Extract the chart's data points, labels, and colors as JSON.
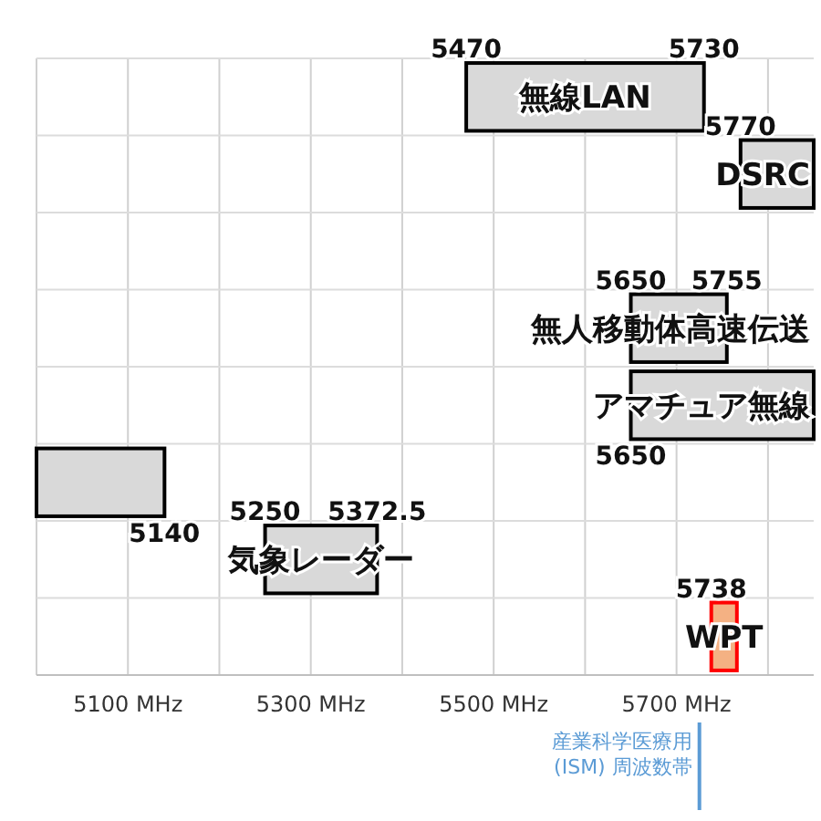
{
  "chart_data": {
    "type": "bar",
    "orientation": "horizontal",
    "grid": true,
    "categories": [
      "無線LAN",
      "DSRC",
      null,
      "無人移動体高速伝送",
      "アマチュア無線",
      null,
      "気象レーダー",
      "WPT"
    ],
    "base": [
      5470,
      5770,
      null,
      5650,
      5650,
      5000,
      5250,
      5738
    ],
    "values": [
      260,
      80,
      null,
      105,
      200,
      140,
      122.5,
      28
    ],
    "value_labels": [
      null,
      null,
      null,
      null,
      null,
      "5140",
      null,
      null
    ],
    "colors": [
      "#d9d9d9",
      "#d9d9d9",
      null,
      "#d9d9d9",
      "#d9d9d9",
      "#d9d9d9",
      "#d9d9d9",
      "#f4b183"
    ],
    "xlim": [
      5000,
      5850
    ],
    "xticks": [
      {
        "value": 5000,
        "label": null
      },
      {
        "value": 5100,
        "label": "5100 MHz"
      },
      {
        "value": 5200,
        "label": null
      },
      {
        "value": 5300,
        "label": "5300 MHz"
      },
      {
        "value": 5400,
        "label": null
      },
      {
        "value": 5500,
        "label": "5500 MHz"
      },
      {
        "value": 5600,
        "label": null
      },
      {
        "value": 5700,
        "label": "5700 MHz"
      },
      {
        "value": 5800,
        "label": null
      }
    ],
    "annotations": [
      {
        "text": "5470",
        "x": 5470,
        "y": "無線LAN"
      },
      {
        "text": "5730",
        "x": 5730,
        "y": "無線LAN"
      },
      {
        "text": "5770",
        "x": 5770,
        "y": "DSRC"
      },
      {
        "text": "5650",
        "x": 5650,
        "y": "無人移動体高速伝送"
      },
      {
        "text": "5755",
        "x": 5755,
        "y": "無人移動体高速伝送"
      },
      {
        "text": "5650",
        "x": 5650,
        "y": "アマチュア無線"
      },
      {
        "text": "5250",
        "x": 5250,
        "y": "気象レーダー"
      },
      {
        "text": "5372.5",
        "x": 5372.5,
        "y": "気象レーダー"
      },
      {
        "text": "5738",
        "x": 5738,
        "y": "WPT"
      }
    ],
    "ref_lines": [
      {
        "axis": "x",
        "value": 5725,
        "label": "産業科学医療用 (ISM) 周波数帯",
        "color": "#5b9bd5"
      }
    ]
  }
}
